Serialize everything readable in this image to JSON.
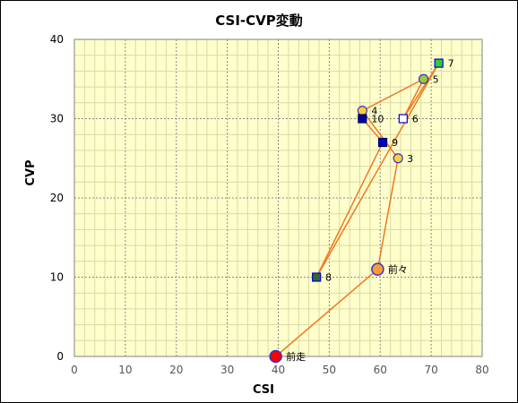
{
  "chart_data": {
    "type": "scatter",
    "title": "CSI-CVP変動",
    "xlabel": "CSI",
    "ylabel": "CVP",
    "xlim": [
      0,
      80
    ],
    "ylim": [
      0,
      40
    ],
    "x_ticks": [
      "0",
      "10",
      "20",
      "30",
      "40",
      "50",
      "60",
      "70",
      "80"
    ],
    "y_ticks": [
      "0",
      "10",
      "20",
      "30",
      "40"
    ],
    "grid": true,
    "background_color": "#ffffcc",
    "line_color": "#f07820",
    "points": [
      {
        "label": "前走",
        "x": 39.5,
        "y": 0,
        "marker": "circle-large",
        "fill": "#ff0000",
        "stroke": "#3333cc"
      },
      {
        "label": "前々",
        "x": 59.5,
        "y": 11,
        "marker": "circle-large",
        "fill": "#ff9933",
        "stroke": "#3333cc"
      },
      {
        "label": "3",
        "x": 63.5,
        "y": 25,
        "marker": "circle",
        "fill": "#ffcc33",
        "stroke": "#3333cc"
      },
      {
        "label": "4",
        "x": 56.5,
        "y": 31,
        "marker": "circle",
        "fill": "#ffcc33",
        "stroke": "#3333cc"
      },
      {
        "label": "5",
        "x": 68.5,
        "y": 35,
        "marker": "circle",
        "fill": "#99cc33",
        "stroke": "#3333cc"
      },
      {
        "label": "6",
        "x": 64.5,
        "y": 30,
        "marker": "square",
        "fill": "#ffffff",
        "stroke": "#0000cc"
      },
      {
        "label": "7",
        "x": 71.5,
        "y": 37,
        "marker": "square",
        "fill": "#33cc33",
        "stroke": "#0000cc"
      },
      {
        "label": "8",
        "x": 47.5,
        "y": 10,
        "marker": "square",
        "fill": "#336633",
        "stroke": "#0000cc"
      },
      {
        "label": "9",
        "x": 60.5,
        "y": 27,
        "marker": "square",
        "fill": "#0000cc",
        "stroke": "#000066"
      },
      {
        "label": "10",
        "x": 56.5,
        "y": 30,
        "marker": "square",
        "fill": "#000099",
        "stroke": "#000066"
      }
    ]
  }
}
